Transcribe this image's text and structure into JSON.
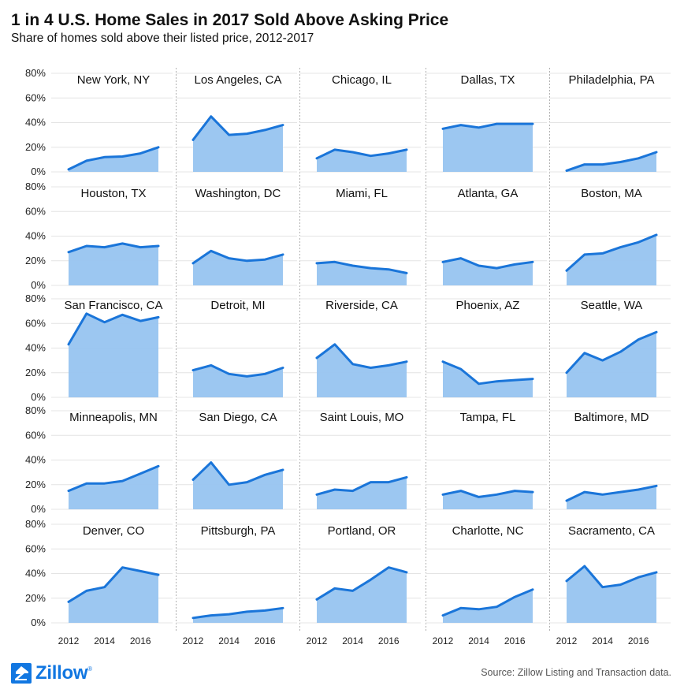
{
  "header": {
    "title": "1 in 4 U.S. Home Sales in 2017 Sold Above Asking Price",
    "subtitle": "Share of homes sold above their listed price, 2012-2017"
  },
  "footer": {
    "logo_text": "Zillow",
    "logo_reg": "®",
    "source": "Source: Zillow Listing and Transaction data."
  },
  "colors": {
    "line": "#1a75d9",
    "fill": "#97c4f0",
    "grid": "#e4e4e4",
    "divider": "#b0b0b0",
    "brand": "#1277e1"
  },
  "chart_data": {
    "type": "area",
    "xlim": [
      2012,
      2017
    ],
    "ylim": [
      0,
      80
    ],
    "x_ticks": [
      2012,
      2014,
      2016
    ],
    "x_tick_labels": [
      "2012",
      "2014",
      "2016"
    ],
    "y_ticks": [
      0,
      20,
      40,
      60,
      80
    ],
    "y_tick_labels": [
      "0%",
      "20%",
      "40%",
      "60%",
      "80%"
    ],
    "x": [
      2012,
      2013,
      2014,
      2015,
      2016,
      2017
    ],
    "grid": true,
    "panels": [
      {
        "name": "New York, NY",
        "values": [
          2,
          9,
          12,
          12.5,
          15,
          20
        ]
      },
      {
        "name": "Los Angeles, CA",
        "values": [
          26,
          45,
          30,
          31,
          34,
          38
        ]
      },
      {
        "name": "Chicago, IL",
        "values": [
          11,
          18,
          16,
          13,
          15,
          18
        ]
      },
      {
        "name": "Dallas, TX",
        "values": [
          35,
          38,
          36,
          39,
          39,
          39
        ]
      },
      {
        "name": "Philadelphia, PA",
        "values": [
          1,
          6,
          6,
          8,
          11,
          16
        ]
      },
      {
        "name": "Houston, TX",
        "values": [
          27,
          32,
          31,
          34,
          31,
          32
        ]
      },
      {
        "name": "Washington, DC",
        "values": [
          18,
          28,
          22,
          20,
          21,
          25
        ]
      },
      {
        "name": "Miami, FL",
        "values": [
          18,
          19,
          16,
          14,
          13,
          10
        ]
      },
      {
        "name": "Atlanta, GA",
        "values": [
          19,
          22,
          16,
          14,
          17,
          19
        ]
      },
      {
        "name": "Boston, MA",
        "values": [
          12,
          25,
          26,
          31,
          35,
          41
        ]
      },
      {
        "name": "San Francisco, CA",
        "values": [
          43,
          68,
          61,
          67,
          62,
          65
        ]
      },
      {
        "name": "Detroit, MI",
        "values": [
          22,
          26,
          19,
          17,
          19,
          24
        ]
      },
      {
        "name": "Riverside, CA",
        "values": [
          32,
          43,
          27,
          24,
          26,
          29
        ]
      },
      {
        "name": "Phoenix, AZ",
        "values": [
          29,
          23,
          11,
          13,
          14,
          15
        ]
      },
      {
        "name": "Seattle, WA",
        "values": [
          20,
          36,
          30,
          37,
          47,
          53
        ]
      },
      {
        "name": "Minneapolis, MN",
        "values": [
          15,
          21,
          21,
          23,
          29,
          35
        ]
      },
      {
        "name": "San Diego, CA",
        "values": [
          24,
          38,
          20,
          22,
          28,
          32
        ]
      },
      {
        "name": "Saint Louis, MO",
        "values": [
          12,
          16,
          15,
          22,
          22,
          26
        ]
      },
      {
        "name": "Tampa, FL",
        "values": [
          12,
          15,
          10,
          12,
          15,
          14
        ]
      },
      {
        "name": "Baltimore, MD",
        "values": [
          7,
          14,
          12,
          14,
          16,
          19
        ]
      },
      {
        "name": "Denver, CO",
        "values": [
          17,
          26,
          29,
          45,
          42,
          39
        ]
      },
      {
        "name": "Pittsburgh, PA",
        "values": [
          4,
          6,
          7,
          9,
          10,
          12
        ]
      },
      {
        "name": "Portland, OR",
        "values": [
          19,
          28,
          26,
          35,
          45,
          41
        ]
      },
      {
        "name": "Charlotte, NC",
        "values": [
          6,
          12,
          11,
          13,
          21,
          27
        ]
      },
      {
        "name": "Sacramento, CA",
        "values": [
          34,
          46,
          29,
          31,
          37,
          41
        ]
      }
    ]
  }
}
